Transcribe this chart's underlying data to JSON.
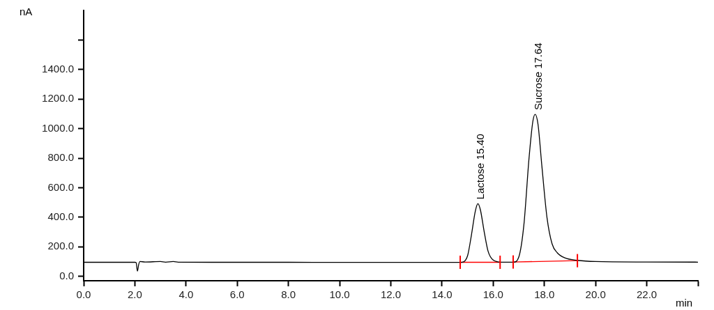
{
  "chart_data": {
    "type": "line",
    "xlabel": "min",
    "ylabel": "nA",
    "xlim": [
      0,
      24
    ],
    "ylim": [
      -30,
      1800
    ],
    "xticks": [
      {
        "value": 0,
        "label": "0.0"
      },
      {
        "value": 2,
        "label": "2.0"
      },
      {
        "value": 4,
        "label": "4.0"
      },
      {
        "value": 6,
        "label": "6.0"
      },
      {
        "value": 8,
        "label": "8.0"
      },
      {
        "value": 10,
        "label": "10.0"
      },
      {
        "value": 12,
        "label": "12.0"
      },
      {
        "value": 14,
        "label": "14.0"
      },
      {
        "value": 16,
        "label": "16.0"
      },
      {
        "value": 18,
        "label": "18.0"
      },
      {
        "value": 20,
        "label": "20.0"
      },
      {
        "value": 22,
        "label": "22.0"
      },
      {
        "value": 24,
        "label": null
      }
    ],
    "yticks": [
      {
        "value": 0,
        "label": "0.0"
      },
      {
        "value": 200,
        "label": "200.0"
      },
      {
        "value": 400,
        "label": "400.0"
      },
      {
        "value": 600,
        "label": "600.0"
      },
      {
        "value": 800,
        "label": "800.0"
      },
      {
        "value": 1000,
        "label": "1000.0"
      },
      {
        "value": 1200,
        "label": "1200.0"
      },
      {
        "value": 1400,
        "label": "1400.0"
      },
      {
        "value": 1600,
        "label": null
      }
    ],
    "grid": false,
    "legend": false,
    "line_style": "solid",
    "series": [
      {
        "color": "#000000",
        "marker": "none",
        "x": [
          0,
          1,
          2,
          2.05,
          2.1,
          2.15,
          2.2,
          2.4,
          3,
          3.2,
          3.5,
          3.7,
          5,
          8,
          10,
          12,
          14.5,
          14.8,
          15,
          15.15,
          15.3,
          15.4,
          15.5,
          15.65,
          15.8,
          16,
          16.3,
          16.8,
          17,
          17.2,
          17.4,
          17.55,
          17.64,
          17.75,
          17.9,
          18.1,
          18.3,
          18.5,
          18.8,
          19.3,
          20,
          22,
          24
        ],
        "values": [
          95,
          95,
          95,
          93,
          35,
          80,
          100,
          97,
          100,
          96,
          100,
          96,
          95,
          95,
          94,
          94,
          94,
          96,
          140,
          280,
          440,
          492,
          450,
          300,
          170,
          110,
          96,
          96,
          130,
          350,
          800,
          1050,
          1097,
          1030,
          750,
          400,
          220,
          160,
          125,
          108,
          100,
          97,
          96
        ]
      },
      {
        "color": "#ff0000",
        "marker": "none",
        "x": [
          14.71,
          16.27
        ],
        "values": [
          95,
          95
        ],
        "errors": [
          45,
          45
        ]
      },
      {
        "color": "#ff0000",
        "marker": "none",
        "x": [
          16.78,
          19.29
        ],
        "values": [
          97,
          106
        ],
        "errors": [
          45,
          45
        ]
      }
    ],
    "annotations": [
      {
        "text": "Lactose 15.40",
        "x": 15.4,
        "y": 492
      },
      {
        "text": "Sucrose 17.64",
        "x": 17.64,
        "y": 1097
      }
    ]
  }
}
